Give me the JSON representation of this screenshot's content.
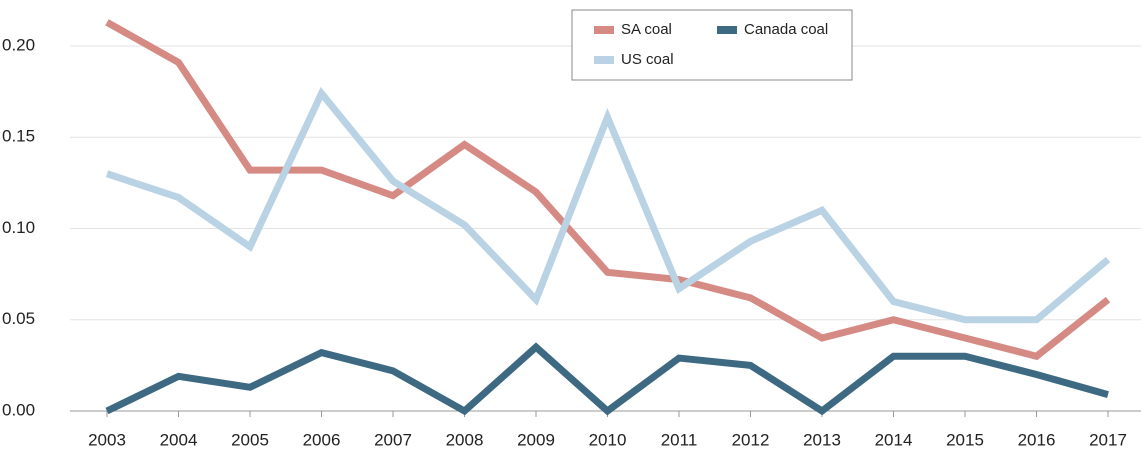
{
  "chart_data": {
    "type": "line",
    "categories": [
      "2003",
      "2004",
      "2005",
      "2006",
      "2007",
      "2008",
      "2009",
      "2010",
      "2011",
      "2012",
      "2013",
      "2014",
      "2015",
      "2016",
      "2017"
    ],
    "series": [
      {
        "name": "SA coal",
        "color": "#d68a84",
        "values": [
          0.213,
          0.191,
          0.132,
          0.132,
          0.118,
          0.146,
          0.12,
          0.076,
          0.072,
          0.062,
          0.04,
          0.05,
          0.04,
          0.03,
          0.061
        ]
      },
      {
        "name": "Canada coal",
        "color": "#3d6a82",
        "values": [
          0.0,
          0.019,
          0.013,
          0.032,
          0.022,
          0.0,
          0.035,
          0.0,
          0.029,
          0.025,
          0.0,
          0.03,
          0.03,
          0.02,
          0.009
        ]
      },
      {
        "name": "US coal",
        "color": "#b9d3e5",
        "values": [
          0.13,
          0.117,
          0.09,
          0.174,
          0.126,
          0.102,
          0.061,
          0.161,
          0.067,
          0.093,
          0.11,
          0.06,
          0.05,
          0.05,
          0.083
        ]
      }
    ],
    "ylim": [
      0,
      0.22
    ],
    "yticks": [
      {
        "value": 0,
        "label": "0.00"
      },
      {
        "value": 0.05,
        "label": "0.05"
      },
      {
        "value": 0.1,
        "label": "0.10"
      },
      {
        "value": 0.15,
        "label": "0.15"
      },
      {
        "value": 0.2,
        "label": "0.20"
      }
    ],
    "grid": true,
    "legend": "top"
  }
}
